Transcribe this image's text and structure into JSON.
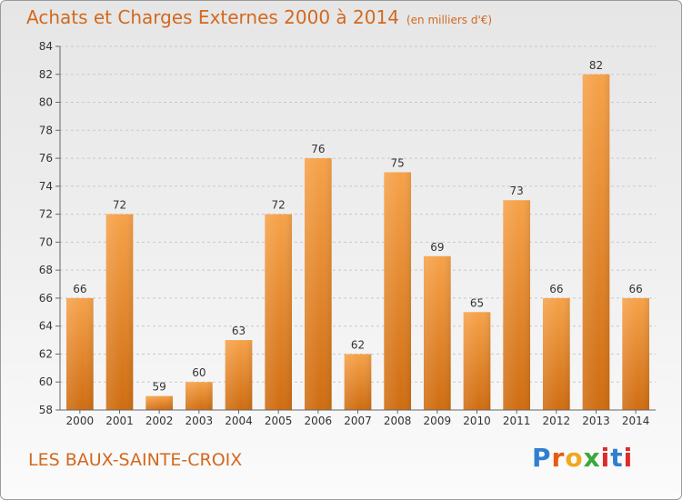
{
  "header": {
    "title": "Achats et Charges Externes 2000 à 2014",
    "subtitle": "(en milliers d'€)"
  },
  "footer": {
    "commune": "LES BAUX-SAINTE-CROIX",
    "logo": {
      "p": "P",
      "r": "r",
      "o": "o",
      "x": "x",
      "i": "i",
      "t": "t",
      "i2": "i"
    }
  },
  "chart_data": {
    "type": "bar",
    "title": "Achats et Charges Externes 2000 à 2014",
    "subtitle": "(en milliers d'€)",
    "categories": [
      "2000",
      "2001",
      "2002",
      "2003",
      "2004",
      "2005",
      "2006",
      "2007",
      "2008",
      "2009",
      "2010",
      "2011",
      "2012",
      "2013",
      "2014"
    ],
    "values": [
      66,
      72,
      59,
      60,
      63,
      72,
      76,
      62,
      75,
      69,
      65,
      73,
      66,
      82,
      66
    ],
    "ylim": [
      58,
      84
    ],
    "yticks": [
      58,
      60,
      62,
      64,
      66,
      68,
      70,
      72,
      74,
      76,
      78,
      80,
      82,
      84
    ],
    "grid": true,
    "bar_color": "#f0912e",
    "bar_color_dark": "#d06f14"
  }
}
